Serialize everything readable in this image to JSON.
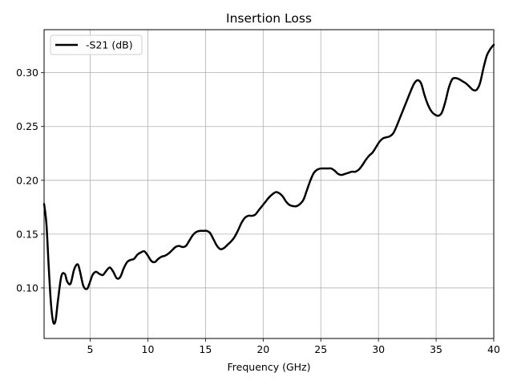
{
  "chart_data": {
    "type": "line",
    "title": "Insertion Loss",
    "xlabel": "Frequency (GHz)",
    "ylabel": "",
    "xlim": [
      1,
      40
    ],
    "ylim": [
      0.053,
      0.34
    ],
    "xticks": [
      5,
      10,
      15,
      20,
      25,
      30,
      35,
      40
    ],
    "yticks": [
      0.1,
      0.15,
      0.2,
      0.25,
      0.3
    ],
    "xtick_labels": [
      "5",
      "10",
      "15",
      "20",
      "25",
      "30",
      "35",
      "40"
    ],
    "ytick_labels": [
      "0.10",
      "0.15",
      "0.20",
      "0.25",
      "0.30"
    ],
    "grid": true,
    "legend_position": "top-left",
    "series": [
      {
        "name": "-S21 (dB)",
        "color": "#000000",
        "x": [
          1.0,
          1.2,
          1.4,
          1.6,
          1.8,
          2.0,
          2.2,
          2.5,
          2.8,
          3.0,
          3.3,
          3.6,
          3.9,
          4.1,
          4.4,
          4.7,
          4.9,
          5.2,
          5.5,
          5.8,
          6.1,
          6.4,
          6.7,
          7.0,
          7.3,
          7.6,
          7.9,
          8.2,
          8.5,
          8.8,
          9.1,
          9.4,
          9.7,
          10.0,
          10.3,
          10.6,
          10.9,
          11.2,
          11.5,
          11.8,
          12.1,
          12.4,
          12.7,
          13.0,
          13.3,
          13.6,
          13.9,
          14.2,
          14.5,
          14.8,
          15.1,
          15.4,
          15.7,
          16.0,
          16.3,
          16.6,
          16.9,
          17.2,
          17.5,
          17.8,
          18.1,
          18.4,
          18.7,
          19.0,
          19.3,
          19.6,
          19.9,
          20.2,
          20.5,
          20.8,
          21.1,
          21.4,
          21.7,
          22.0,
          22.3,
          22.6,
          22.9,
          23.2,
          23.5,
          23.8,
          24.1,
          24.4,
          24.7,
          25.0,
          25.3,
          25.6,
          25.9,
          26.2,
          26.5,
          26.8,
          27.1,
          27.4,
          27.7,
          28.0,
          28.3,
          28.6,
          28.9,
          29.2,
          29.5,
          29.8,
          30.1,
          30.4,
          30.7,
          31.0,
          31.3,
          31.6,
          31.9,
          32.2,
          32.5,
          32.8,
          33.1,
          33.4,
          33.7,
          34.0,
          34.3,
          34.6,
          34.9,
          35.2,
          35.5,
          35.8,
          36.1,
          36.4,
          36.7,
          37.0,
          37.3,
          37.6,
          37.9,
          38.2,
          38.5,
          38.8,
          39.1,
          39.4,
          39.7,
          40.0
        ],
        "y": [
          0.178,
          0.16,
          0.12,
          0.085,
          0.068,
          0.07,
          0.088,
          0.111,
          0.113,
          0.106,
          0.104,
          0.117,
          0.122,
          0.116,
          0.102,
          0.099,
          0.103,
          0.112,
          0.115,
          0.113,
          0.112,
          0.116,
          0.119,
          0.115,
          0.109,
          0.11,
          0.118,
          0.124,
          0.126,
          0.127,
          0.131,
          0.133,
          0.134,
          0.13,
          0.125,
          0.124,
          0.127,
          0.129,
          0.13,
          0.132,
          0.135,
          0.138,
          0.139,
          0.138,
          0.139,
          0.144,
          0.149,
          0.152,
          0.153,
          0.153,
          0.153,
          0.151,
          0.145,
          0.139,
          0.136,
          0.137,
          0.14,
          0.143,
          0.147,
          0.153,
          0.16,
          0.165,
          0.167,
          0.167,
          0.168,
          0.172,
          0.176,
          0.18,
          0.184,
          0.187,
          0.189,
          0.188,
          0.185,
          0.18,
          0.177,
          0.176,
          0.176,
          0.178,
          0.182,
          0.191,
          0.2,
          0.207,
          0.21,
          0.211,
          0.211,
          0.211,
          0.211,
          0.209,
          0.206,
          0.205,
          0.206,
          0.207,
          0.208,
          0.208,
          0.21,
          0.214,
          0.219,
          0.223,
          0.226,
          0.231,
          0.236,
          0.239,
          0.24,
          0.241,
          0.244,
          0.251,
          0.259,
          0.267,
          0.275,
          0.283,
          0.29,
          0.293,
          0.29,
          0.279,
          0.27,
          0.264,
          0.261,
          0.26,
          0.263,
          0.273,
          0.286,
          0.294,
          0.295,
          0.294,
          0.292,
          0.29,
          0.287,
          0.284,
          0.284,
          0.29,
          0.304,
          0.316,
          0.322,
          0.326
        ]
      }
    ]
  }
}
